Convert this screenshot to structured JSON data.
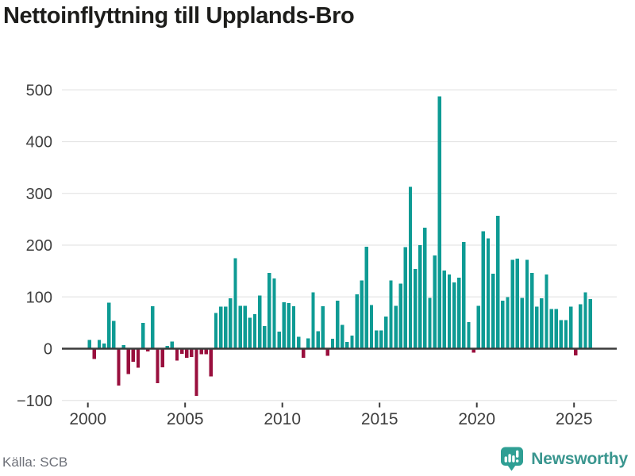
{
  "title": "Nettoinflyttning till Upplands-Bro",
  "footer": {
    "source": "Källa: SCB",
    "brand": "Newsworthy"
  },
  "colors": {
    "positive": "#0e9b94",
    "negative": "#990f3d",
    "grid": "#e5e5e5",
    "axis_line": "#3b3b3b",
    "tick_label": "#3f3f3f",
    "source_text": "#6d7078",
    "brand_teal": "#2f9f94",
    "brand_text": "#3a968f"
  },
  "chart_data": {
    "type": "bar",
    "title": "Nettoinflyttning till Upplands-Bro",
    "x_unit": "quarter",
    "start": "2000 Q1",
    "end": "2025 Q4",
    "frequency": "quarterly",
    "xticks": [
      2000,
      2005,
      2010,
      2015,
      2020,
      2025
    ],
    "yticks": [
      -100,
      0,
      100,
      200,
      300,
      400,
      500
    ],
    "ylim": [
      -100,
      500
    ],
    "grid": true,
    "legend": false,
    "xlabel": "",
    "ylabel": "",
    "source": "SCB",
    "values": [
      17,
      -20,
      17,
      10,
      89,
      54,
      -71,
      7,
      -49,
      -25,
      -37,
      50,
      -5,
      82,
      -67,
      -36,
      5,
      14,
      -23,
      -10,
      -18,
      -16,
      -91,
      -11,
      -11,
      -54,
      69,
      81,
      81,
      97,
      175,
      83,
      83,
      60,
      67,
      103,
      44,
      146,
      136,
      33,
      90,
      88,
      82,
      23,
      -18,
      20,
      109,
      34,
      82,
      -14,
      19,
      93,
      46,
      13,
      25,
      105,
      132,
      197,
      84,
      35,
      35,
      62,
      132,
      83,
      126,
      196,
      313,
      154,
      200,
      234,
      98,
      180,
      487,
      151,
      143,
      128,
      137,
      206,
      51,
      -8,
      83,
      227,
      213,
      145,
      257,
      93,
      100,
      172,
      174,
      98,
      172,
      146,
      81,
      97,
      143,
      77,
      77,
      55,
      55,
      81,
      -13,
      86,
      109,
      96
    ]
  }
}
